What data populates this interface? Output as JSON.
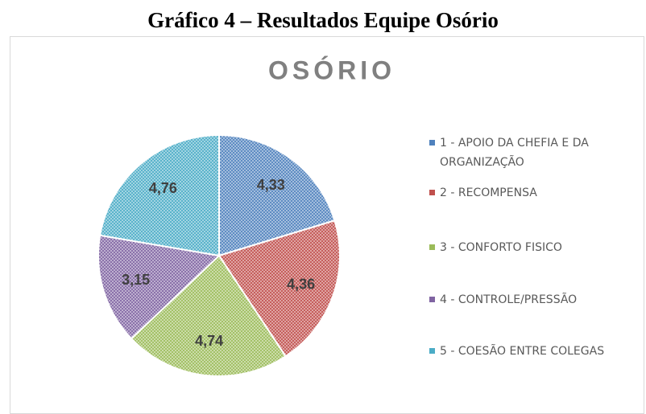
{
  "figure_title": "Gráfico 4 – Resultados Equipe Osório",
  "chart_data": {
    "type": "pie",
    "title": "OSÓRIO",
    "categories": [
      "1 - APOIO DA CHEFIA E DA ORGANIZAÇÃO",
      "2 - RECOMPENSA",
      "3 - CONFORTO FISICO",
      "4 - CONTROLE/PRESSÃO",
      "5 - COESÃO ENTRE COLEGAS"
    ],
    "values": [
      4.33,
      4.36,
      4.74,
      3.15,
      4.76
    ],
    "value_labels": [
      "4,33",
      "4,36",
      "4,74",
      "3,15",
      "4,76"
    ],
    "colors": [
      "#4f81bd",
      "#c0504d",
      "#9bbb59",
      "#8064a2",
      "#4bacc6"
    ],
    "legend": "right"
  }
}
